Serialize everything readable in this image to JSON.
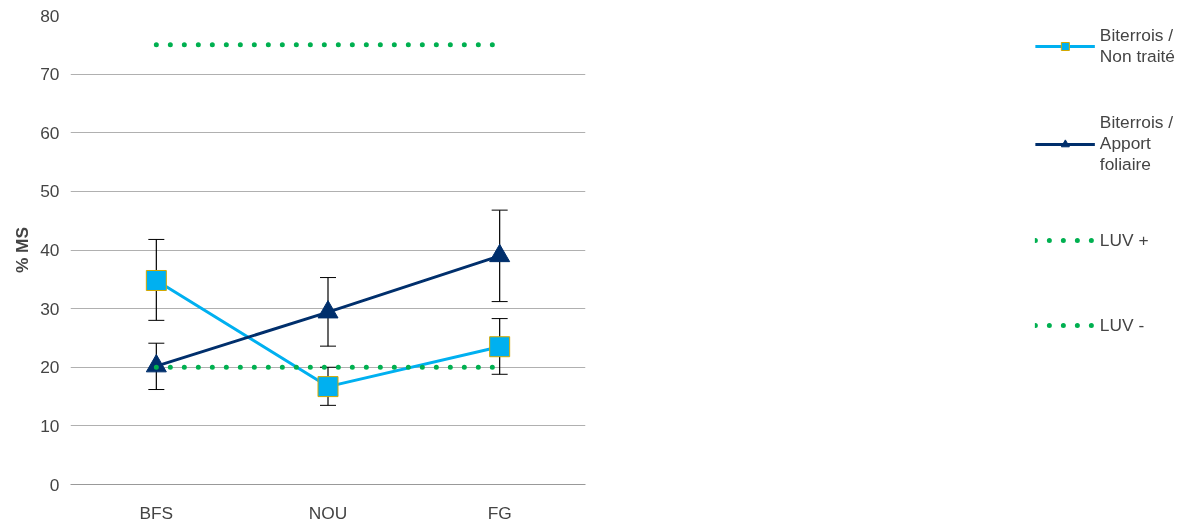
{
  "chart_data": {
    "type": "line",
    "ylabel": "% MS",
    "categories": [
      "BFS",
      "NOU",
      "FG"
    ],
    "series": [
      {
        "name": "Biterrois / Non traité",
        "color": "#00b0f0",
        "marker": "square",
        "line_style": "solid",
        "values": [
          34.8,
          16.7,
          23.5
        ],
        "errors": [
          [
            28.0,
            41.8
          ],
          [
            13.5,
            20.0
          ],
          [
            18.8,
            28.3
          ]
        ]
      },
      {
        "name": "Biterrois / Apport foliaire",
        "color": "#002f6c",
        "marker": "triangle",
        "line_style": "solid",
        "values": [
          20.2,
          29.4,
          39.0
        ],
        "errors": [
          [
            16.2,
            24.1
          ],
          [
            23.6,
            35.3
          ],
          [
            31.2,
            46.8
          ]
        ]
      },
      {
        "name": "LUV +",
        "color": "#00b050",
        "marker": "none",
        "line_style": "dotted",
        "values": [
          75,
          75,
          75
        ]
      },
      {
        "name": "LUV -",
        "color": "#00b050",
        "marker": "none",
        "line_style": "dotted",
        "values": [
          20,
          20,
          20
        ]
      }
    ],
    "ylim": [
      0,
      80
    ],
    "yticks": [
      0,
      10,
      20,
      30,
      40,
      50,
      60,
      70,
      80
    ],
    "grid": "y",
    "legend": "right"
  }
}
